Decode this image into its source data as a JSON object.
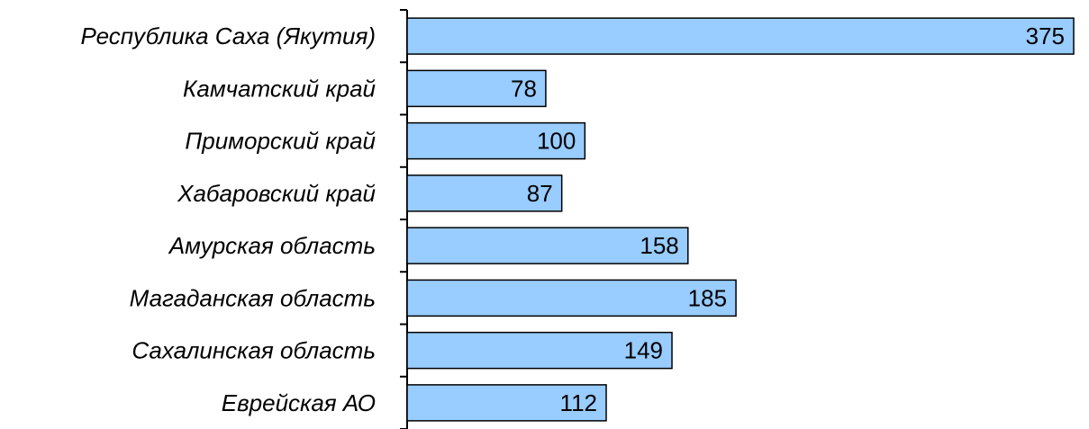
{
  "chart_data": {
    "type": "bar",
    "orientation": "horizontal",
    "categories": [
      "Республика Саха (Якутия)",
      "Камчатский край",
      "Приморский край",
      "Хабаровский край",
      "Амурская область",
      "Магаданская область",
      "Сахалинская область",
      "Еврейская АО"
    ],
    "values": [
      375,
      78,
      100,
      87,
      158,
      185,
      149,
      112
    ],
    "xlim": [
      0,
      375
    ],
    "grid": false,
    "legend": "none",
    "bar_color": "#99ccff",
    "bar_stroke": "#000000",
    "data_labels": "inside-end"
  }
}
